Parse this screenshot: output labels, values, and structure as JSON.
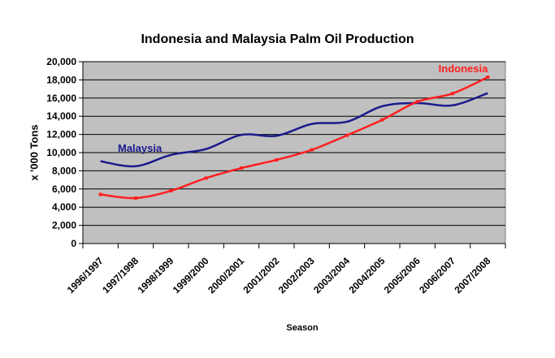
{
  "chart_data": {
    "type": "line",
    "title": "Indonesia and Malaysia Palm Oil Production",
    "xlabel": "Season",
    "ylabel": "x '000 Tons",
    "ylim": [
      0,
      20000
    ],
    "yticks": [
      0,
      2000,
      4000,
      6000,
      8000,
      10000,
      12000,
      14000,
      16000,
      18000,
      20000
    ],
    "ytick_labels": [
      "0",
      "2,000",
      "4,000",
      "6,000",
      "8,000",
      "10,000",
      "12,000",
      "14,000",
      "16,000",
      "18,000",
      "20,000"
    ],
    "grid": true,
    "plot_background": "#c0c0c0",
    "categories": [
      "1996/1997",
      "1997/1998",
      "1998/1999",
      "1999/2000",
      "2000/2001",
      "2001/2002",
      "2002/2003",
      "2003/2004",
      "2004/2005",
      "2005/2006",
      "2006/2007",
      "2007/2008"
    ],
    "series": [
      {
        "name": "Malaysia",
        "color": "#1a1a8c",
        "markers": false,
        "values": [
          9050,
          8500,
          9750,
          10400,
          11950,
          11850,
          13150,
          13400,
          15100,
          15450,
          15200,
          16550
        ]
      },
      {
        "name": "Indonesia",
        "color": "#ff1f1f",
        "markers": true,
        "values": [
          5400,
          5000,
          5800,
          7200,
          8300,
          9200,
          10300,
          11900,
          13600,
          15600,
          16500,
          18300
        ]
      }
    ]
  }
}
